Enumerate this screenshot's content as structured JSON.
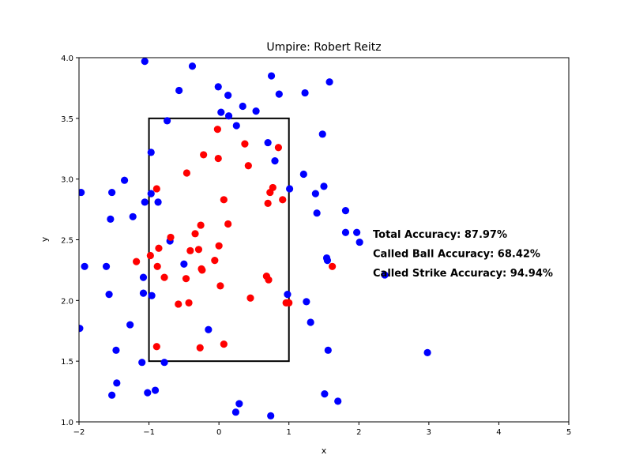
{
  "chart_data": {
    "type": "scatter",
    "title": "Umpire: Robert Reitz",
    "xlabel": "x",
    "ylabel": "y",
    "xlim": [
      -2,
      5
    ],
    "ylim": [
      1.0,
      4.0
    ],
    "x_ticks": [
      "−2",
      "−1",
      "0",
      "1",
      "2",
      "3",
      "4",
      "5"
    ],
    "y_ticks": [
      "1.0",
      "1.5",
      "2.0",
      "2.5",
      "3.0",
      "3.5",
      "4.0"
    ],
    "grid": false,
    "strike_zone": {
      "x": [
        -1,
        1
      ],
      "y": [
        1.5,
        3.5
      ]
    },
    "series": [
      {
        "color": "#0000ff",
        "points": [
          [
            -1.06,
            3.97
          ],
          [
            -0.38,
            3.93
          ],
          [
            0.75,
            3.85
          ],
          [
            1.58,
            3.8
          ],
          [
            -0.01,
            3.76
          ],
          [
            -0.57,
            3.73
          ],
          [
            1.23,
            3.71
          ],
          [
            0.13,
            3.69
          ],
          [
            0.86,
            3.7
          ],
          [
            0.34,
            3.6
          ],
          [
            0.53,
            3.56
          ],
          [
            0.03,
            3.55
          ],
          [
            0.14,
            3.52
          ],
          [
            -0.74,
            3.48
          ],
          [
            0.25,
            3.44
          ],
          [
            1.48,
            3.37
          ],
          [
            0.7,
            3.3
          ],
          [
            -0.97,
            3.22
          ],
          [
            0.8,
            3.15
          ],
          [
            1.21,
            3.04
          ],
          [
            -1.35,
            2.99
          ],
          [
            -1.97,
            2.89
          ],
          [
            -1.53,
            2.89
          ],
          [
            -0.97,
            2.88
          ],
          [
            1.01,
            2.92
          ],
          [
            1.38,
            2.88
          ],
          [
            1.5,
            2.94
          ],
          [
            -1.06,
            2.81
          ],
          [
            -0.87,
            2.81
          ],
          [
            1.81,
            2.74
          ],
          [
            1.4,
            2.72
          ],
          [
            -1.23,
            2.69
          ],
          [
            -1.55,
            2.67
          ],
          [
            1.81,
            2.56
          ],
          [
            1.97,
            2.56
          ],
          [
            2.01,
            2.48
          ],
          [
            -0.7,
            2.49
          ],
          [
            1.54,
            2.35
          ],
          [
            1.55,
            2.33
          ],
          [
            -1.92,
            2.28
          ],
          [
            -1.61,
            2.28
          ],
          [
            -0.5,
            2.3
          ],
          [
            2.37,
            2.21
          ],
          [
            -1.08,
            2.19
          ],
          [
            -1.57,
            2.05
          ],
          [
            -1.08,
            2.06
          ],
          [
            -0.96,
            2.04
          ],
          [
            0.98,
            2.05
          ],
          [
            1.25,
            1.99
          ],
          [
            -1.99,
            1.77
          ],
          [
            -1.27,
            1.8
          ],
          [
            1.31,
            1.82
          ],
          [
            -0.15,
            1.76
          ],
          [
            -1.47,
            1.59
          ],
          [
            1.56,
            1.59
          ],
          [
            2.98,
            1.57
          ],
          [
            -1.1,
            1.49
          ],
          [
            -0.78,
            1.49
          ],
          [
            -1.46,
            1.32
          ],
          [
            -0.91,
            1.26
          ],
          [
            -1.02,
            1.24
          ],
          [
            -1.53,
            1.22
          ],
          [
            1.51,
            1.23
          ],
          [
            1.7,
            1.17
          ],
          [
            0.29,
            1.15
          ],
          [
            0.24,
            1.08
          ],
          [
            0.74,
            1.05
          ]
        ]
      },
      {
        "color": "#ff0000",
        "points": [
          [
            -0.02,
            3.41
          ],
          [
            0.37,
            3.29
          ],
          [
            0.85,
            3.26
          ],
          [
            -0.22,
            3.2
          ],
          [
            -0.01,
            3.17
          ],
          [
            0.42,
            3.11
          ],
          [
            -0.46,
            3.05
          ],
          [
            -0.89,
            2.92
          ],
          [
            0.73,
            2.89
          ],
          [
            0.77,
            2.93
          ],
          [
            0.07,
            2.83
          ],
          [
            0.91,
            2.83
          ],
          [
            0.7,
            2.8
          ],
          [
            -0.26,
            2.62
          ],
          [
            0.13,
            2.63
          ],
          [
            -0.34,
            2.55
          ],
          [
            -0.69,
            2.52
          ],
          [
            -0.86,
            2.43
          ],
          [
            0.0,
            2.45
          ],
          [
            -0.41,
            2.41
          ],
          [
            -0.29,
            2.42
          ],
          [
            -0.98,
            2.37
          ],
          [
            -1.18,
            2.32
          ],
          [
            -0.06,
            2.33
          ],
          [
            -0.88,
            2.28
          ],
          [
            -0.25,
            2.26
          ],
          [
            -0.24,
            2.25
          ],
          [
            -0.78,
            2.19
          ],
          [
            -0.47,
            2.18
          ],
          [
            0.68,
            2.2
          ],
          [
            0.71,
            2.17
          ],
          [
            0.02,
            2.12
          ],
          [
            0.45,
            2.02
          ],
          [
            -0.58,
            1.97
          ],
          [
            -0.43,
            1.98
          ],
          [
            0.96,
            1.98
          ],
          [
            1.0,
            1.98
          ],
          [
            1.62,
            2.28
          ],
          [
            -0.89,
            1.62
          ],
          [
            -0.27,
            1.61
          ],
          [
            0.07,
            1.64
          ]
        ]
      }
    ],
    "annotations": [
      "Total Accuracy: 87.97%",
      "Called Ball Accuracy: 68.42%",
      "Called Strike Accuracy: 94.94%"
    ]
  }
}
